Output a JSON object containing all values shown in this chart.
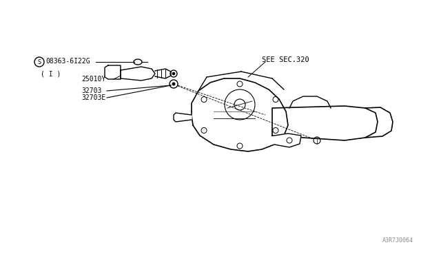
{
  "bg_color": "#ffffff",
  "line_color": "#000000",
  "light_line_color": "#aaaaaa",
  "text_color": "#000000",
  "diagram_title": "A3R7J0064",
  "labels": {
    "part1": "S 08363-6I22G",
    "part1_sub": "( I )",
    "part2": "25010Y",
    "part3": "32703",
    "part4": "32703E",
    "see_sec": "SEE SEC.320"
  },
  "figsize": [
    6.4,
    3.72
  ],
  "dpi": 100
}
